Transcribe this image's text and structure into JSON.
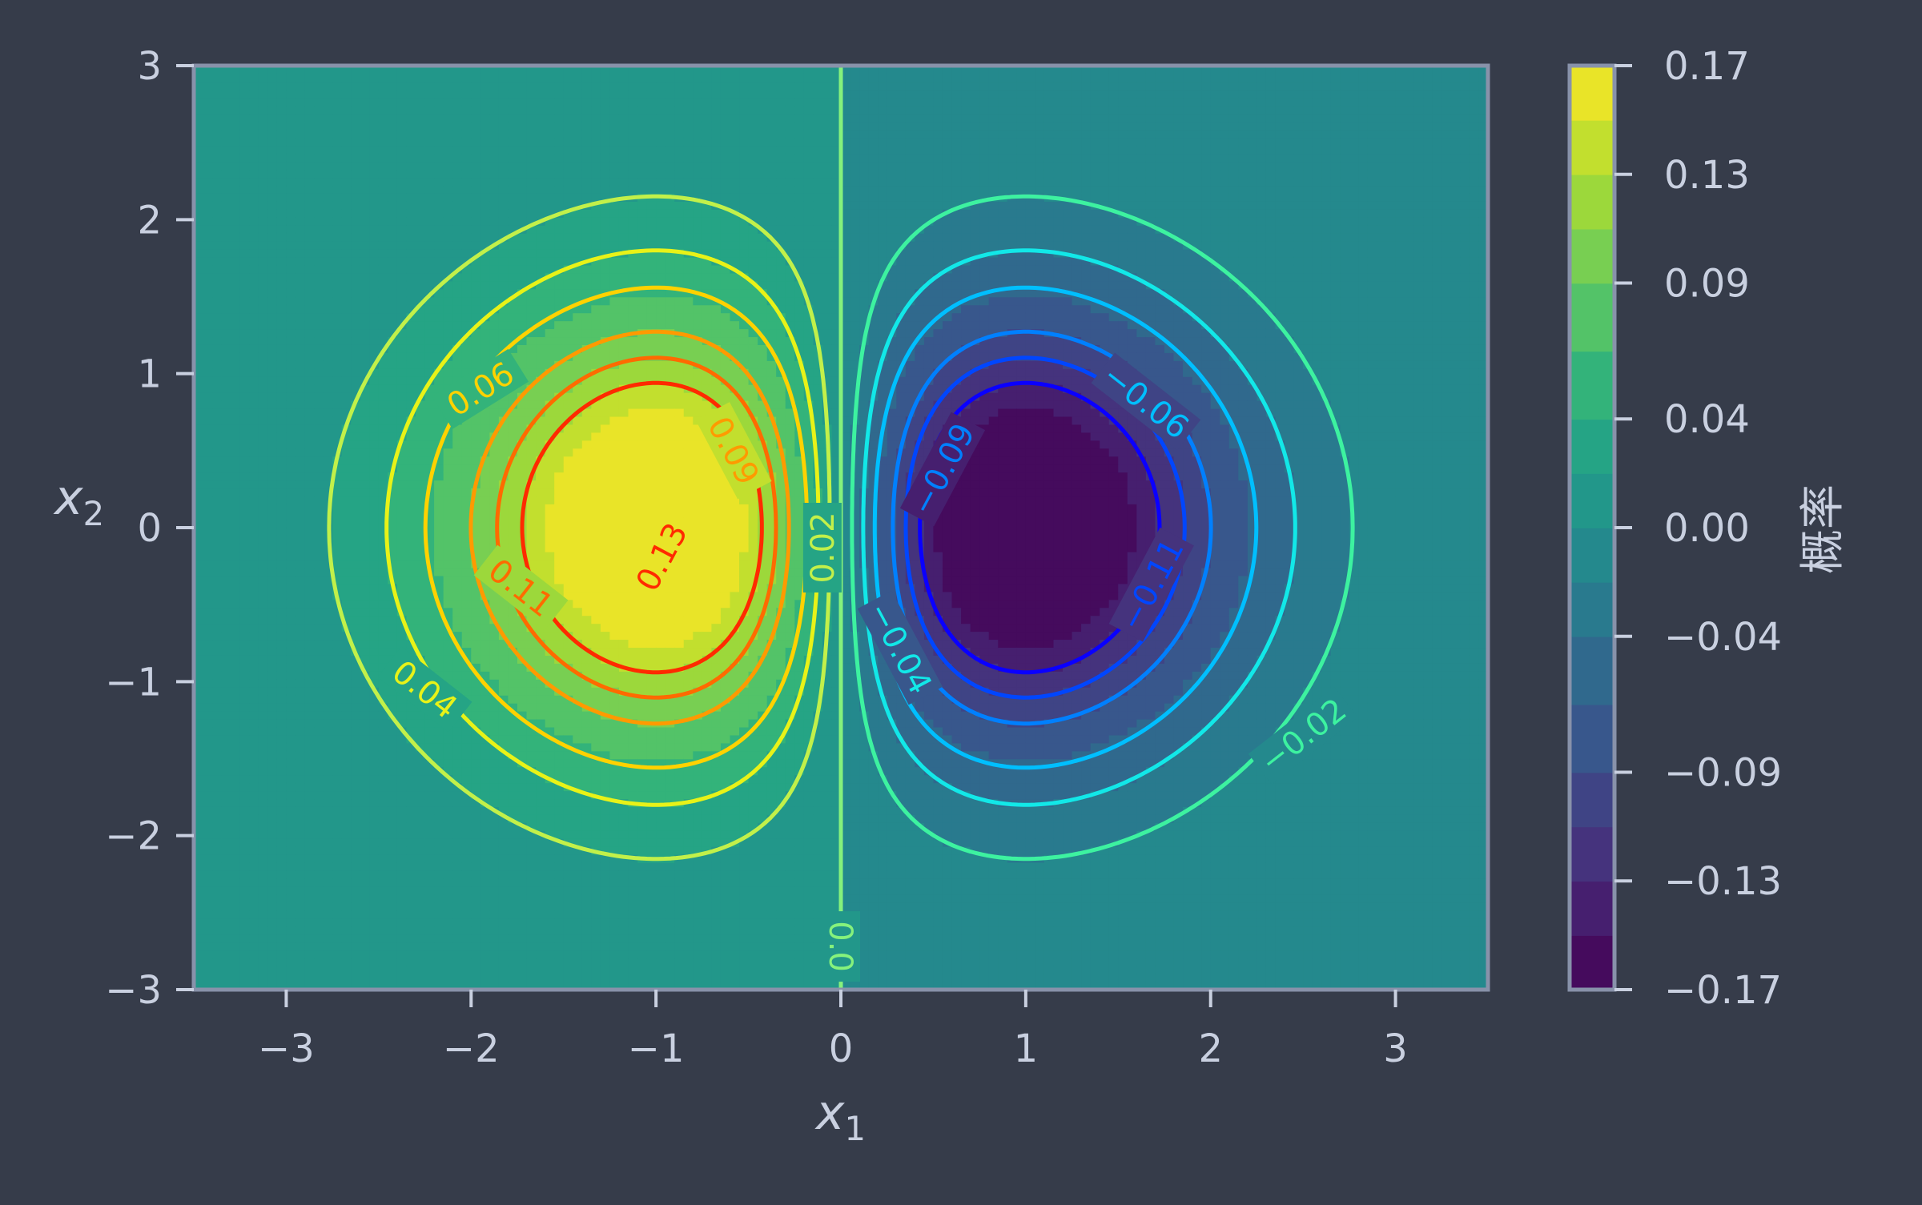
{
  "chart_data": {
    "type": "contour",
    "function": "z = -x1 * exp(-(x1^2 + x2^2)/2) / 3",
    "xlabel": "x",
    "xlabel_sub": "1",
    "ylabel": "x",
    "ylabel_sub": "2",
    "xlim": [
      -3.5,
      3.5
    ],
    "ylim": [
      -3,
      3
    ],
    "x_ticks": [
      -3,
      -2,
      -1,
      0,
      1,
      2,
      3
    ],
    "x_tick_labels": [
      "−3",
      "−2",
      "−1",
      "0",
      "1",
      "2",
      "3"
    ],
    "y_ticks": [
      -3,
      -2,
      -1,
      0,
      1,
      2,
      3
    ],
    "y_tick_labels": [
      "−3",
      "−2",
      "−1",
      "0",
      "1",
      "2",
      "3"
    ],
    "filled_levels": [
      -0.17,
      -0.15,
      -0.13,
      -0.11,
      -0.09,
      -0.065,
      -0.04,
      -0.02,
      0.0,
      0.02,
      0.04,
      0.065,
      0.09,
      0.11,
      0.13,
      0.15,
      0.17
    ],
    "line_levels": [
      -0.13,
      -0.11,
      -0.09,
      -0.06,
      -0.04,
      -0.02,
      0.0,
      0.02,
      0.04,
      0.06,
      0.09,
      0.11,
      0.13
    ],
    "line_colors": {
      "-0.13": "#0a00ff",
      "-0.11": "#0046ff",
      "-0.09": "#0080ff",
      "-0.06": "#00bfff",
      "-0.04": "#12e8e8",
      "-0.02": "#3df2a0",
      "0": "#86f27c",
      "0.02": "#c2f04a",
      "0.04": "#e8f218",
      "0.06": "#ffd200",
      "0.09": "#ff9a00",
      "0.11": "#ff6a00",
      "0.13": "#ff2a00"
    },
    "contour_labels": [
      {
        "text": "0.06",
        "x": -1.95,
        "y": 0.9,
        "angle": -32,
        "level": "0.06"
      },
      {
        "text": "0.09",
        "x": -0.58,
        "y": 0.5,
        "angle": 62,
        "level": "0.09"
      },
      {
        "text": "0.13",
        "x": -0.97,
        "y": -0.19,
        "angle": -62,
        "level": "0.13"
      },
      {
        "text": "0.11",
        "x": -1.73,
        "y": -0.39,
        "angle": 38,
        "level": "0.11"
      },
      {
        "text": "0.04",
        "x": -2.25,
        "y": -1.05,
        "angle": 38,
        "level": "0.04"
      },
      {
        "text": "0.02",
        "x": -0.1,
        "y": -0.13,
        "angle": -90,
        "level": "0.02"
      },
      {
        "text": "0.0",
        "x": 0.0,
        "y": -2.72,
        "angle": 90,
        "level": "0"
      },
      {
        "text": "−0.06",
        "x": 1.65,
        "y": 0.82,
        "angle": 38,
        "level": "-0.06"
      },
      {
        "text": "−0.09",
        "x": 0.55,
        "y": 0.38,
        "angle": -62,
        "level": "-0.09"
      },
      {
        "text": "−0.11",
        "x": 1.68,
        "y": -0.37,
        "angle": -62,
        "level": "-0.11"
      },
      {
        "text": "−0.04",
        "x": 0.32,
        "y": -0.78,
        "angle": 62,
        "level": "-0.04"
      },
      {
        "text": "−0.02",
        "x": 2.5,
        "y": -1.35,
        "angle": -38,
        "level": "-0.02"
      }
    ],
    "colorbar": {
      "label": "概率",
      "tick_values": [
        0.17,
        0.13,
        0.09,
        0.04,
        0.0,
        -0.04,
        -0.09,
        -0.13,
        -0.17
      ],
      "tick_labels": [
        "0.17",
        "0.13",
        "0.09",
        "0.04",
        "0.00",
        "−0.04",
        "−0.09",
        "−0.13",
        "−0.17"
      ],
      "range": [
        -0.17,
        0.17
      ]
    },
    "colormap": "viridis",
    "grid": false
  },
  "colors": {
    "background": "#363c4a",
    "frame": "#8892aa",
    "text": "#c9d0e0"
  }
}
